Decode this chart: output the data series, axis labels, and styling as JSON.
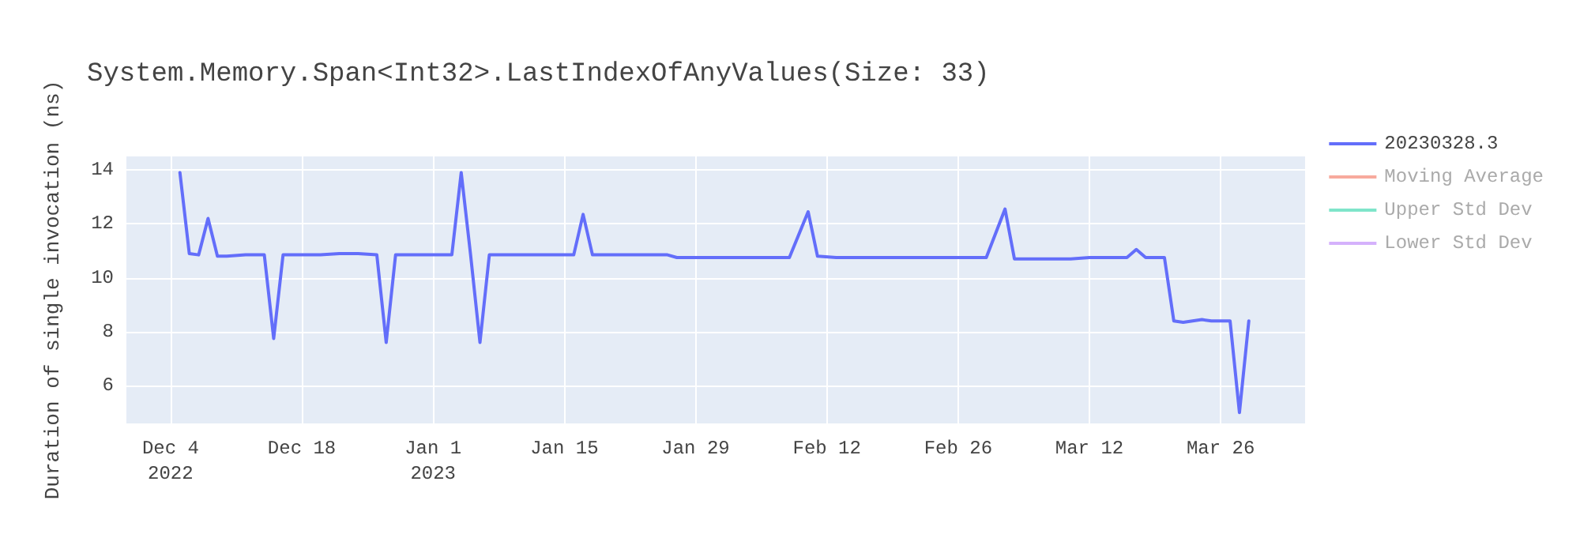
{
  "chart_data": {
    "type": "line",
    "title": "System.Memory.Span<Int32>.LastIndexOfAnyValues(Size: 33)",
    "ylabel": "Duration of single invocation (ns)",
    "x": [
      "2022-12-05",
      "2022-12-06",
      "2022-12-07",
      "2022-12-08",
      "2022-12-09",
      "2022-12-10",
      "2022-12-12",
      "2022-12-14",
      "2022-12-15",
      "2022-12-16",
      "2022-12-18",
      "2022-12-20",
      "2022-12-22",
      "2022-12-24",
      "2022-12-26",
      "2022-12-27",
      "2022-12-28",
      "2022-12-30",
      "2023-01-01",
      "2023-01-03",
      "2023-01-04",
      "2023-01-05",
      "2023-01-06",
      "2023-01-07",
      "2023-01-09",
      "2023-01-11",
      "2023-01-13",
      "2023-01-15",
      "2023-01-16",
      "2023-01-17",
      "2023-01-18",
      "2023-01-20",
      "2023-01-22",
      "2023-01-24",
      "2023-01-26",
      "2023-01-27",
      "2023-01-29",
      "2023-01-31",
      "2023-02-02",
      "2023-02-04",
      "2023-02-06",
      "2023-02-08",
      "2023-02-10",
      "2023-02-11",
      "2023-02-13",
      "2023-02-15",
      "2023-02-17",
      "2023-02-19",
      "2023-02-21",
      "2023-02-23",
      "2023-02-25",
      "2023-02-27",
      "2023-03-01",
      "2023-03-03",
      "2023-03-04",
      "2023-03-06",
      "2023-03-08",
      "2023-03-10",
      "2023-03-12",
      "2023-03-14",
      "2023-03-16",
      "2023-03-17",
      "2023-03-18",
      "2023-03-20",
      "2023-03-21",
      "2023-03-22",
      "2023-03-23",
      "2023-03-24",
      "2023-03-25",
      "2023-03-26",
      "2023-03-27",
      "2023-03-28",
      "2023-03-29"
    ],
    "series": [
      {
        "name": "20230328.3",
        "color": "#636efa",
        "values": [
          13.9,
          10.9,
          10.85,
          12.2,
          10.8,
          10.8,
          10.85,
          10.85,
          7.75,
          10.85,
          10.85,
          10.85,
          10.9,
          10.9,
          10.85,
          7.6,
          10.85,
          10.85,
          10.85,
          10.85,
          13.9,
          10.85,
          7.6,
          10.85,
          10.85,
          10.85,
          10.85,
          10.85,
          10.85,
          12.35,
          10.85,
          10.85,
          10.85,
          10.85,
          10.85,
          10.75,
          10.75,
          10.75,
          10.75,
          10.75,
          10.75,
          10.75,
          12.45,
          10.8,
          10.75,
          10.75,
          10.75,
          10.75,
          10.75,
          10.75,
          10.75,
          10.75,
          10.75,
          12.55,
          10.7,
          10.7,
          10.7,
          10.7,
          10.75,
          10.75,
          10.75,
          11.05,
          10.75,
          10.75,
          8.4,
          8.35,
          8.4,
          8.45,
          8.4,
          8.4,
          8.4,
          5.0,
          8.4
        ]
      },
      {
        "name": "Moving Average",
        "color": "#ef553b",
        "values": [
          null,
          null,
          null,
          null,
          null,
          null,
          null,
          null,
          null,
          null,
          null,
          null,
          null,
          null,
          null,
          null,
          null,
          null,
          null,
          null,
          null,
          null,
          null,
          null,
          null,
          null,
          null,
          null,
          null,
          null,
          null,
          null,
          null,
          null,
          null,
          null,
          null,
          null,
          null,
          null,
          null,
          null,
          null,
          null,
          null,
          null,
          null,
          null,
          null,
          null,
          null,
          null,
          null,
          null,
          null,
          null,
          null,
          null,
          null,
          null,
          null,
          null,
          null,
          null,
          null,
          null,
          null,
          null,
          null,
          null,
          null,
          null,
          null
        ]
      },
      {
        "name": "Upper Std Dev",
        "color": "#00cc96",
        "values": [
          null,
          null,
          null,
          null,
          null,
          null,
          null,
          null,
          null,
          null,
          null,
          null,
          null,
          null,
          null,
          null,
          null,
          null,
          null,
          null,
          null,
          null,
          null,
          null,
          null,
          null,
          null,
          null,
          null,
          null,
          null,
          null,
          null,
          null,
          null,
          null,
          null,
          null,
          null,
          null,
          null,
          null,
          null,
          null,
          null,
          null,
          null,
          null,
          null,
          null,
          null,
          null,
          null,
          null,
          null,
          null,
          null,
          null,
          null,
          null,
          null,
          null,
          null,
          null,
          null,
          null,
          null,
          null,
          null,
          null,
          null,
          null,
          null
        ]
      },
      {
        "name": "Lower Std Dev",
        "color": "#ab63fa",
        "values": [
          null,
          null,
          null,
          null,
          null,
          null,
          null,
          null,
          null,
          null,
          null,
          null,
          null,
          null,
          null,
          null,
          null,
          null,
          null,
          null,
          null,
          null,
          null,
          null,
          null,
          null,
          null,
          null,
          null,
          null,
          null,
          null,
          null,
          null,
          null,
          null,
          null,
          null,
          null,
          null,
          null,
          null,
          null,
          null,
          null,
          null,
          null,
          null,
          null,
          null,
          null,
          null,
          null,
          null,
          null,
          null,
          null,
          null,
          null,
          null,
          null,
          null,
          null,
          null,
          null,
          null,
          null,
          null,
          null,
          null,
          null,
          null,
          null
        ]
      }
    ],
    "xlim": [
      "2022-11-29T07:00",
      "2023-04-04"
    ],
    "xticks": [
      {
        "value": "2022-12-04",
        "label": "Dec 4\n2022"
      },
      {
        "value": "2022-12-18",
        "label": "Dec 18"
      },
      {
        "value": "2023-01-01",
        "label": "Jan 1\n2023"
      },
      {
        "value": "2023-01-15",
        "label": "Jan 15"
      },
      {
        "value": "2023-01-29",
        "label": "Jan 29"
      },
      {
        "value": "2023-02-12",
        "label": "Feb 12"
      },
      {
        "value": "2023-02-26",
        "label": "Feb 26"
      },
      {
        "value": "2023-03-12",
        "label": "Mar 12"
      },
      {
        "value": "2023-03-26",
        "label": "Mar 26"
      }
    ],
    "ylim": [
      4.6,
      14.5
    ],
    "yticks": [
      6,
      8,
      10,
      12,
      14
    ],
    "grid": true,
    "legend": "right",
    "marker": "none",
    "line_style": "solid"
  }
}
